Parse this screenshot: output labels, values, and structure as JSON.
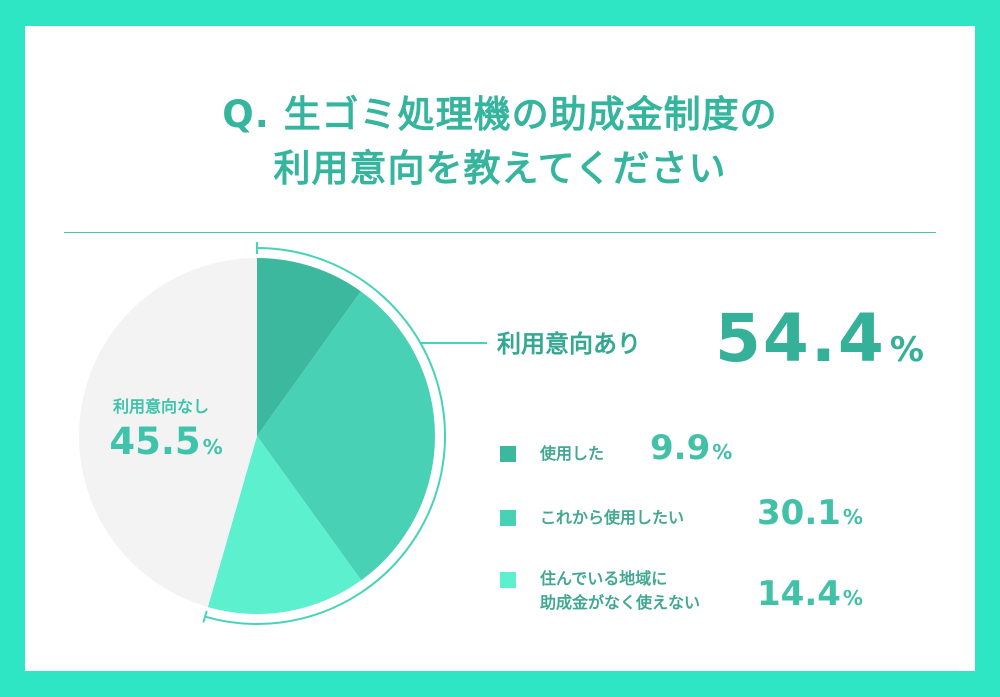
{
  "title": {
    "line1": "Q. 生ゴミ処理機の助成金制度の",
    "line2": "利用意向を教えてください"
  },
  "summary": {
    "yes_label": "利用意向あり",
    "yes_value": "54.4",
    "no_label": "利用意向なし",
    "no_value": "45.5",
    "percent_sign": "%"
  },
  "legend": [
    {
      "label_lines": [
        "使用した"
      ],
      "value": "9.9",
      "color": "#3cb89f"
    },
    {
      "label_lines": [
        "これから使用したい"
      ],
      "value": "30.1",
      "color": "#48d1b4"
    },
    {
      "label_lines": [
        "住んでいる地域に",
        "助成金がなく使えない"
      ],
      "value": "14.4",
      "color": "#5cf0cf"
    }
  ],
  "colors": {
    "background": "#2ee6c3",
    "card": "#ffffff",
    "title": "#35b49e",
    "no_slice": "#f3f3f3",
    "bracket": "#46d3b8"
  },
  "chart_data": {
    "type": "pie",
    "title": "Q. 生ゴミ処理機の助成金制度の利用意向を教えてください",
    "slices": [
      {
        "label": "使用した",
        "value": 9.9,
        "color": "#3cb89f"
      },
      {
        "label": "これから使用したい",
        "value": 30.1,
        "color": "#48d1b4"
      },
      {
        "label": "住んでいる地域に助成金がなく使えない",
        "value": 14.4,
        "color": "#5cf0cf"
      },
      {
        "label": "利用意向なし",
        "value": 45.5,
        "color": "#f3f3f3"
      }
    ],
    "groups": [
      {
        "label": "利用意向あり",
        "value": 54.4
      },
      {
        "label": "利用意向なし",
        "value": 45.5
      }
    ],
    "start_angle": "top",
    "direction": "clockwise"
  }
}
